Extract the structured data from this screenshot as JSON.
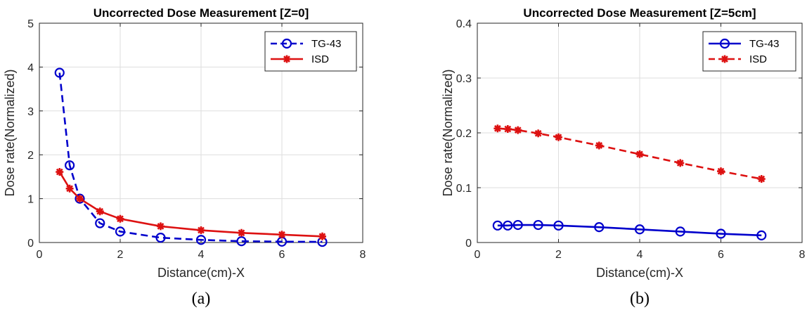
{
  "chart_data": [
    {
      "type": "line",
      "title": "Uncorrected Dose Measurement [Z=0]",
      "xlabel": "Distance(cm)-X",
      "ylabel": "Dose rate(Normalized)",
      "caption": "(a)",
      "xlim": [
        0,
        8
      ],
      "ylim": [
        0,
        5
      ],
      "xticks": [
        0,
        2,
        4,
        6,
        8
      ],
      "yticks": [
        0,
        1,
        2,
        3,
        4,
        5
      ],
      "xtick_labels": [
        "0",
        "2",
        "4",
        "6",
        "8"
      ],
      "ytick_labels": [
        "0",
        "1",
        "2",
        "3",
        "4",
        "5"
      ],
      "grid": true,
      "legend_position": "top-right",
      "series": [
        {
          "name": "TG-43",
          "color": "#0000cc",
          "line_style": "dashed",
          "marker": "circle",
          "x": [
            0.5,
            0.75,
            1,
            1.5,
            2,
            3,
            4,
            5,
            6,
            7
          ],
          "y": [
            3.87,
            1.76,
            1.0,
            0.44,
            0.25,
            0.11,
            0.06,
            0.03,
            0.02,
            0.015
          ]
        },
        {
          "name": "ISD",
          "color": "#dd1111",
          "line_style": "solid",
          "marker": "asterisk",
          "x": [
            0.5,
            0.75,
            1,
            1.5,
            2,
            3,
            4,
            5,
            6,
            7
          ],
          "y": [
            1.61,
            1.23,
            1.0,
            0.71,
            0.54,
            0.37,
            0.28,
            0.22,
            0.18,
            0.14
          ]
        }
      ]
    },
    {
      "type": "line",
      "title": "Uncorrected Dose Measurement [Z=5cm]",
      "xlabel": "Distance(cm)-X",
      "ylabel": "Dose rate(Normalized)",
      "caption": "(b)",
      "xlim": [
        0,
        8
      ],
      "ylim": [
        0,
        0.4
      ],
      "xticks": [
        0,
        2,
        4,
        6,
        8
      ],
      "yticks": [
        0,
        0.1,
        0.2,
        0.3,
        0.4
      ],
      "xtick_labels": [
        "0",
        "2",
        "4",
        "6",
        "8"
      ],
      "ytick_labels": [
        "0",
        "0.1",
        "0.2",
        "0.3",
        "0.4"
      ],
      "grid": true,
      "legend_position": "top-right",
      "series": [
        {
          "name": "TG-43",
          "color": "#0000cc",
          "line_style": "solid",
          "marker": "circle",
          "x": [
            0.5,
            0.75,
            1,
            1.5,
            2,
            3,
            4,
            5,
            6,
            7
          ],
          "y": [
            0.031,
            0.031,
            0.032,
            0.032,
            0.031,
            0.028,
            0.024,
            0.02,
            0.016,
            0.013
          ]
        },
        {
          "name": "ISD",
          "color": "#dd1111",
          "line_style": "dashed",
          "marker": "asterisk",
          "x": [
            0.5,
            0.75,
            1,
            1.5,
            2,
            3,
            4,
            5,
            6,
            7
          ],
          "y": [
            0.208,
            0.207,
            0.205,
            0.199,
            0.192,
            0.177,
            0.161,
            0.145,
            0.13,
            0.116
          ]
        }
      ]
    }
  ]
}
